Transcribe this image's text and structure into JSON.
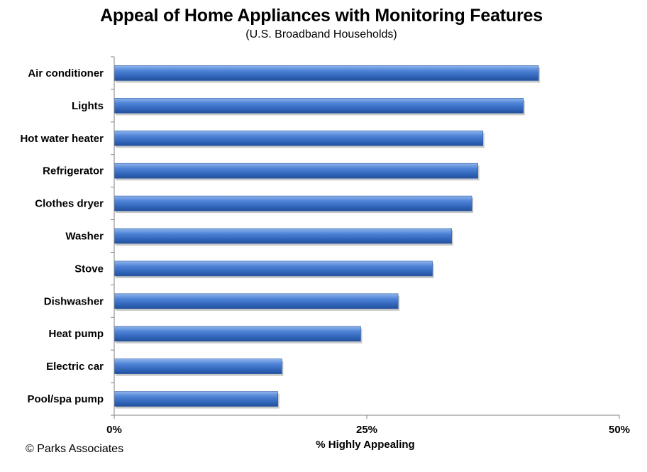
{
  "chart_data": {
    "type": "bar",
    "orientation": "horizontal",
    "title": "Appeal of Home Appliances with Monitoring Features",
    "subtitle": "(U.S. Broadband Households)",
    "categories": [
      "Air conditioner",
      "Lights",
      "Hot water heater",
      "Refrigerator",
      "Clothes dryer",
      "Washer",
      "Stove",
      "Dishwasher",
      "Heat pump",
      "Electric car",
      "Pool/spa pump"
    ],
    "values": [
      42,
      40.5,
      36.5,
      36,
      35.4,
      33.4,
      31.5,
      28.1,
      24.4,
      16.6,
      16.2
    ],
    "xlabel": "% Highly Appealing",
    "ylabel": "",
    "xlim": [
      0,
      50
    ],
    "xticks": [
      "0%",
      "25%",
      "50%"
    ],
    "grid": false,
    "bar_color": "#3a6fc4"
  },
  "footer": {
    "copyright": "© Parks Associates"
  }
}
